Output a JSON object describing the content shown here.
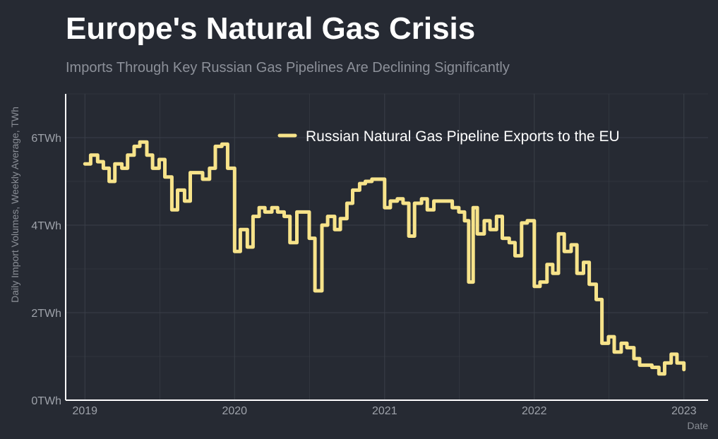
{
  "chart_data": {
    "type": "line",
    "title": "Europe's Natural Gas Crisis",
    "subtitle": "Imports Through Key Russian Gas Pipelines Are Declining Significantly",
    "ylabel": "Daily Import Volumes, Weekly Average, TWh",
    "xlabel": "Date",
    "ylim": [
      0,
      7
    ],
    "xlim": [
      "2018-11-15",
      "2023-03-01"
    ],
    "yticks": [
      0,
      2,
      4,
      6
    ],
    "ytick_labels": [
      "0TWh",
      "2TWh",
      "4TWh",
      "6TWh"
    ],
    "xticks": [
      "2019-01-01",
      "2020-01-01",
      "2021-01-01",
      "2022-01-01",
      "2023-01-01"
    ],
    "xtick_labels": [
      "2019",
      "2020",
      "2021",
      "2022",
      "2023"
    ],
    "grid": true,
    "legend_position": "top-right",
    "colors": {
      "series": "#f7e38a",
      "background": "#262a33",
      "grid": "#3a3f48"
    },
    "series": [
      {
        "name": "Russian Natural Gas Pipeline Exports to the EU",
        "color": "#f7e38a",
        "points": [
          [
            "2019-01-01",
            5.4
          ],
          [
            "2019-01-15",
            5.6
          ],
          [
            "2019-02-01",
            5.45
          ],
          [
            "2019-02-15",
            5.3
          ],
          [
            "2019-03-01",
            5.0
          ],
          [
            "2019-03-15",
            5.4
          ],
          [
            "2019-04-01",
            5.3
          ],
          [
            "2019-04-15",
            5.6
          ],
          [
            "2019-05-01",
            5.8
          ],
          [
            "2019-05-15",
            5.9
          ],
          [
            "2019-06-01",
            5.6
          ],
          [
            "2019-06-15",
            5.3
          ],
          [
            "2019-07-01",
            5.5
          ],
          [
            "2019-07-15",
            5.1
          ],
          [
            "2019-08-01",
            4.35
          ],
          [
            "2019-08-15",
            4.8
          ],
          [
            "2019-09-01",
            4.55
          ],
          [
            "2019-09-15",
            5.2
          ],
          [
            "2019-10-01",
            5.2
          ],
          [
            "2019-10-15",
            5.05
          ],
          [
            "2019-11-01",
            5.3
          ],
          [
            "2019-11-15",
            5.8
          ],
          [
            "2019-12-01",
            5.85
          ],
          [
            "2019-12-15",
            5.3
          ],
          [
            "2020-01-01",
            3.4
          ],
          [
            "2020-01-15",
            3.9
          ],
          [
            "2020-02-01",
            3.5
          ],
          [
            "2020-02-15",
            4.2
          ],
          [
            "2020-03-01",
            4.4
          ],
          [
            "2020-03-15",
            4.3
          ],
          [
            "2020-04-01",
            4.4
          ],
          [
            "2020-04-15",
            4.3
          ],
          [
            "2020-05-01",
            4.2
          ],
          [
            "2020-05-15",
            3.6
          ],
          [
            "2020-06-01",
            4.3
          ],
          [
            "2020-06-15",
            4.3
          ],
          [
            "2020-07-01",
            3.7
          ],
          [
            "2020-07-15",
            2.5
          ],
          [
            "2020-08-01",
            4.0
          ],
          [
            "2020-08-15",
            4.2
          ],
          [
            "2020-09-01",
            3.9
          ],
          [
            "2020-09-15",
            4.15
          ],
          [
            "2020-10-01",
            4.5
          ],
          [
            "2020-10-15",
            4.8
          ],
          [
            "2020-11-01",
            4.95
          ],
          [
            "2020-11-15",
            5.0
          ],
          [
            "2020-12-01",
            5.05
          ],
          [
            "2020-12-15",
            5.05
          ],
          [
            "2021-01-01",
            4.4
          ],
          [
            "2021-01-15",
            4.55
          ],
          [
            "2021-02-01",
            4.6
          ],
          [
            "2021-02-15",
            4.5
          ],
          [
            "2021-03-01",
            3.75
          ],
          [
            "2021-03-15",
            4.5
          ],
          [
            "2021-04-01",
            4.6
          ],
          [
            "2021-04-15",
            4.35
          ],
          [
            "2021-05-01",
            4.55
          ],
          [
            "2021-05-15",
            4.55
          ],
          [
            "2021-06-01",
            4.55
          ],
          [
            "2021-06-15",
            4.4
          ],
          [
            "2021-07-01",
            4.3
          ],
          [
            "2021-07-15",
            4.1
          ],
          [
            "2021-07-25",
            2.7
          ],
          [
            "2021-08-05",
            4.4
          ],
          [
            "2021-08-15",
            3.8
          ],
          [
            "2021-09-01",
            4.1
          ],
          [
            "2021-09-15",
            3.9
          ],
          [
            "2021-10-01",
            4.2
          ],
          [
            "2021-10-15",
            3.7
          ],
          [
            "2021-11-01",
            3.6
          ],
          [
            "2021-11-15",
            3.3
          ],
          [
            "2021-12-01",
            4.05
          ],
          [
            "2021-12-15",
            4.1
          ],
          [
            "2022-01-01",
            2.6
          ],
          [
            "2022-01-15",
            2.7
          ],
          [
            "2022-02-01",
            3.1
          ],
          [
            "2022-02-15",
            2.9
          ],
          [
            "2022-03-01",
            3.8
          ],
          [
            "2022-03-15",
            3.4
          ],
          [
            "2022-04-01",
            3.55
          ],
          [
            "2022-04-15",
            2.9
          ],
          [
            "2022-05-01",
            3.15
          ],
          [
            "2022-05-15",
            2.65
          ],
          [
            "2022-06-01",
            2.3
          ],
          [
            "2022-06-15",
            1.3
          ],
          [
            "2022-07-01",
            1.45
          ],
          [
            "2022-07-15",
            1.1
          ],
          [
            "2022-08-01",
            1.3
          ],
          [
            "2022-08-15",
            1.2
          ],
          [
            "2022-09-01",
            0.95
          ],
          [
            "2022-09-15",
            0.8
          ],
          [
            "2022-10-01",
            0.8
          ],
          [
            "2022-10-15",
            0.75
          ],
          [
            "2022-11-01",
            0.6
          ],
          [
            "2022-11-15",
            0.85
          ],
          [
            "2022-12-01",
            1.05
          ],
          [
            "2022-12-15",
            0.85
          ],
          [
            "2023-01-01",
            0.7
          ]
        ]
      }
    ]
  }
}
